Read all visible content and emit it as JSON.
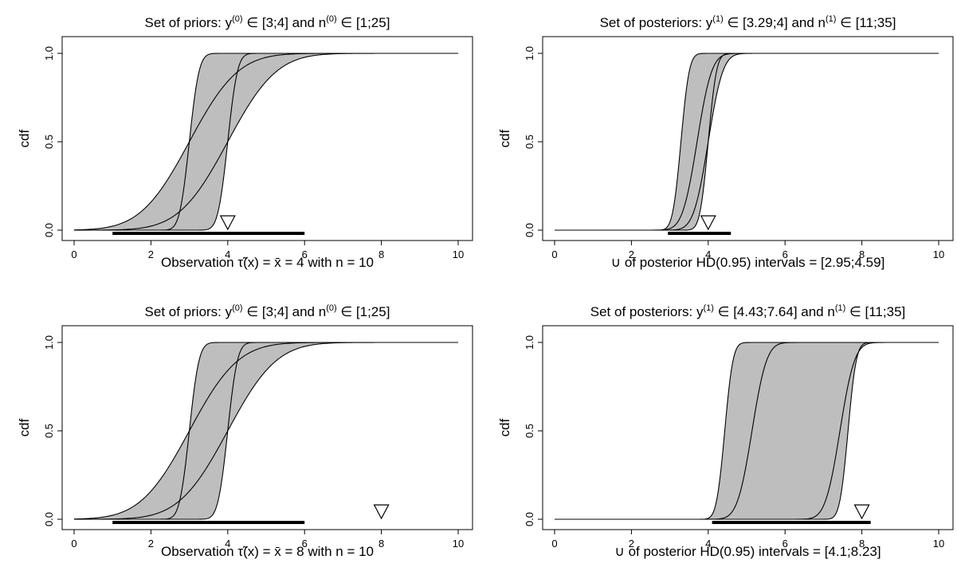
{
  "chart_data": [
    {
      "type": "area",
      "panel": "top-left",
      "title": {
        "prefix": "Set of priors: y",
        "sup1": "(0)",
        "mid": " ∈  [3;4] and n",
        "sup2": "(0)",
        "suffix": " ∈  [1;25]"
      },
      "bottom_text": "Observation τ̃(x) = x̄ = 4 with n = 10",
      "ylabel": "cdf",
      "xlim": [
        0,
        10
      ],
      "ylim": [
        0,
        1
      ],
      "xticks": [
        "0",
        "2",
        "4",
        "6",
        "8",
        "10"
      ],
      "yticks": [
        "0.0",
        "0.5",
        "1.0"
      ],
      "fill_color": "#bebebe",
      "y_range": [
        3,
        4
      ],
      "n_range": [
        1,
        25
      ],
      "observation": 4,
      "n_obs": 10,
      "curves": [
        {
          "mean": 3,
          "sd": 0.2
        },
        {
          "mean": 4,
          "sd": 0.2
        },
        {
          "mean": 3,
          "sd": 1
        },
        {
          "mean": 4,
          "sd": 1
        }
      ],
      "hd_interval": [
        1,
        6
      ]
    },
    {
      "type": "area",
      "panel": "top-right",
      "title": {
        "prefix": "Set of posteriors: y",
        "sup1": "(1)",
        "mid": " ∈  [3.29;4] and n",
        "sup2": "(1)",
        "suffix": " ∈  [11;35]"
      },
      "bottom_text": "∪ of posterior HD(0.95) intervals = [2.95;4.59]",
      "ylabel": "cdf",
      "xlim": [
        0,
        10
      ],
      "ylim": [
        0,
        1
      ],
      "xticks": [
        "0",
        "2",
        "4",
        "6",
        "8",
        "10"
      ],
      "yticks": [
        "0.0",
        "0.5",
        "1.0"
      ],
      "fill_color": "#bebebe",
      "y_range": [
        3.29,
        4
      ],
      "n_range": [
        11,
        35
      ],
      "observation": 4,
      "curves": [
        {
          "mean": 3.29,
          "sd": 0.17
        },
        {
          "mean": 4,
          "sd": 0.17
        },
        {
          "mean": 3.71,
          "sd": 0.3
        },
        {
          "mean": 4,
          "sd": 0.3
        }
      ],
      "hd_interval": [
        2.95,
        4.59
      ]
    },
    {
      "type": "area",
      "panel": "bottom-left",
      "title": {
        "prefix": "Set of priors: y",
        "sup1": "(0)",
        "mid": " ∈  [3;4] and n",
        "sup2": "(0)",
        "suffix": " ∈  [1;25]"
      },
      "bottom_text": "Observation τ̃(x) = x̄ = 8 with n = 10",
      "ylabel": "cdf",
      "xlim": [
        0,
        10
      ],
      "ylim": [
        0,
        1
      ],
      "xticks": [
        "0",
        "2",
        "4",
        "6",
        "8",
        "10"
      ],
      "yticks": [
        "0.0",
        "0.5",
        "1.0"
      ],
      "fill_color": "#bebebe",
      "y_range": [
        3,
        4
      ],
      "n_range": [
        1,
        25
      ],
      "observation": 8,
      "n_obs": 10,
      "curves": [
        {
          "mean": 3,
          "sd": 0.2
        },
        {
          "mean": 4,
          "sd": 0.2
        },
        {
          "mean": 3,
          "sd": 1
        },
        {
          "mean": 4,
          "sd": 1
        }
      ],
      "hd_interval": [
        1,
        6
      ]
    },
    {
      "type": "area",
      "panel": "bottom-right",
      "title": {
        "prefix": "Set of posteriors: y",
        "sup1": "(1)",
        "mid": " ∈  [4.43;7.64] and n",
        "sup2": "(1)",
        "suffix": " ∈  [11;35]"
      },
      "bottom_text": "∪ of posterior HD(0.95) intervals = [4.1;8.23]",
      "ylabel": "cdf",
      "xlim": [
        0,
        10
      ],
      "ylim": [
        0,
        1
      ],
      "xticks": [
        "0",
        "2",
        "4",
        "6",
        "8",
        "10"
      ],
      "yticks": [
        "0.0",
        "0.5",
        "1.0"
      ],
      "fill_color": "#bebebe",
      "y_range": [
        4.43,
        7.64
      ],
      "n_range": [
        11,
        35
      ],
      "observation": 8,
      "curves": [
        {
          "mean": 4.43,
          "sd": 0.17
        },
        {
          "mean": 7.64,
          "sd": 0.17
        },
        {
          "mean": 5.14,
          "sd": 0.3
        },
        {
          "mean": 7.43,
          "sd": 0.3
        }
      ],
      "hd_interval": [
        4.1,
        8.23
      ]
    }
  ]
}
